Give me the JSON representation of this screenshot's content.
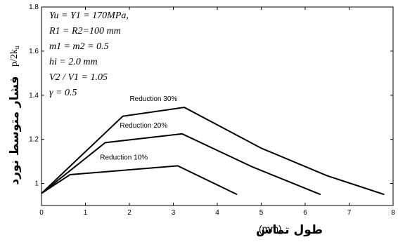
{
  "chart_data": {
    "type": "line",
    "xlabel_text": "طول تماس",
    "xlabel_unit": "(mm)",
    "ylabel_text": "فشار متوسط نورد",
    "ylabel_math": "p/2k",
    "ylabel_math_sub": "u",
    "xlim": [
      0,
      8
    ],
    "ylim": [
      0.9,
      1.8
    ],
    "xticks": [
      "0",
      "1",
      "2",
      "3",
      "4",
      "5",
      "6",
      "7",
      "8"
    ],
    "yticks": [
      "1",
      "1.2",
      "1.4",
      "1.6",
      "1.8"
    ],
    "grid": false,
    "series": [
      {
        "name": "Reduction 30%",
        "x": [
          0,
          1.85,
          3.25,
          5.0,
          6.5,
          7.8
        ],
        "y": [
          0.955,
          1.305,
          1.345,
          1.16,
          1.035,
          0.95
        ]
      },
      {
        "name": "Reduction 20%",
        "x": [
          0,
          1.45,
          3.2,
          4.8,
          6.35
        ],
        "y": [
          0.955,
          1.185,
          1.225,
          1.075,
          0.95
        ]
      },
      {
        "name": "Reduction 10%",
        "x": [
          0,
          0.65,
          3.1,
          4.45
        ],
        "y": [
          0.955,
          1.04,
          1.08,
          0.95
        ]
      }
    ],
    "parameters": [
      "Yu = Y1 = 170MPa,",
      "R1 = R2=100 mm",
      "m1 = m2 = 0.5",
      "hi = 2.0 mm",
      "V2 / V1 = 1.05",
      "γ = 0.5"
    ]
  }
}
